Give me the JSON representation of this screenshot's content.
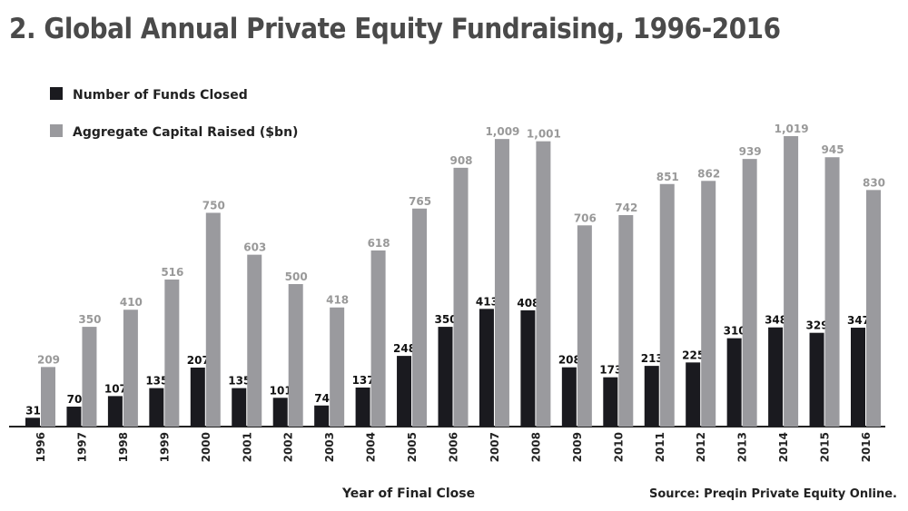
{
  "chart_data": {
    "type": "bar",
    "title": "2. Global Annual Private Equity Fundraising, 1996-2016",
    "xlabel": "Year of Final Close",
    "ylabel": "",
    "source": "Source: Preqin Private Equity Online.",
    "categories": [
      "1996",
      "1997",
      "1998",
      "1999",
      "2000",
      "2001",
      "2002",
      "2003",
      "2004",
      "2005",
      "2006",
      "2007",
      "2008",
      "2009",
      "2010",
      "2011",
      "2012",
      "2013",
      "2014",
      "2015",
      "2016"
    ],
    "series": [
      {
        "name": "Number of Funds Closed",
        "color": "#1a1a1f",
        "values": [
          31,
          70,
          107,
          135,
          207,
          135,
          101,
          74,
          137,
          248,
          350,
          413,
          408,
          208,
          173,
          213,
          225,
          310,
          348,
          329,
          347
        ],
        "labels": [
          "31",
          "70",
          "107",
          "135",
          "207",
          "135",
          "101",
          "74",
          "137",
          "248",
          "350",
          "413",
          "408",
          "208",
          "173",
          "213",
          "225",
          "310",
          "348",
          "329",
          "347"
        ]
      },
      {
        "name": "Aggregate Capital Raised ($bn)",
        "color": "#9a9a9e",
        "values": [
          209,
          350,
          410,
          516,
          750,
          603,
          500,
          418,
          618,
          765,
          908,
          1009,
          1001,
          706,
          742,
          851,
          862,
          939,
          1019,
          945,
          830
        ],
        "labels": [
          "209",
          "350",
          "410",
          "516",
          "750",
          "603",
          "500",
          "418",
          "618",
          "765",
          "908",
          "1,009",
          "1,001",
          "706",
          "742",
          "851",
          "862",
          "939",
          "1,019",
          "945",
          "830"
        ]
      }
    ],
    "ylim": [
      0,
      1019
    ],
    "grid": false,
    "legend_placement": "top-left"
  }
}
